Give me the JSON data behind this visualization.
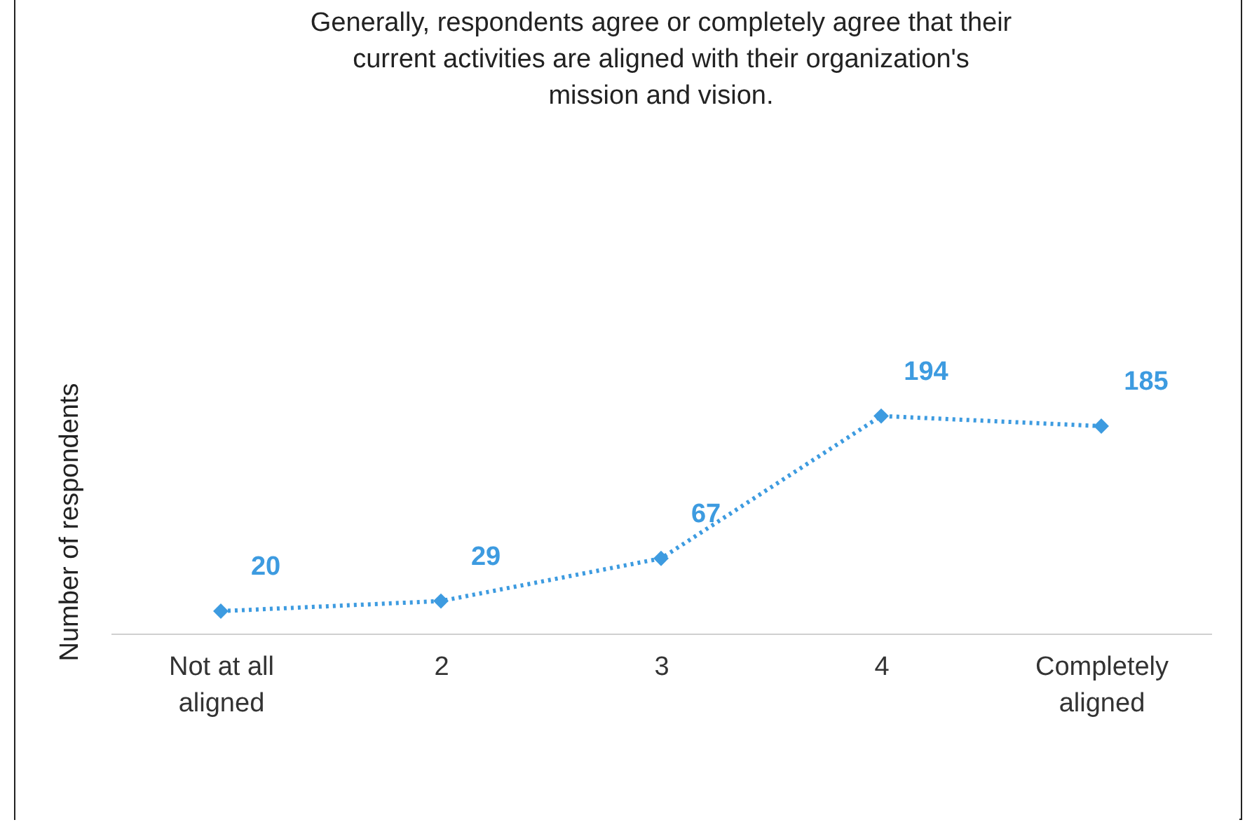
{
  "chart_data": {
    "type": "line",
    "title": "Generally, respondents agree or completely agree that their current activities are aligned with their organization's mission and vision.",
    "ylabel": "Number of respondents",
    "categories": [
      "Not at all aligned",
      "2",
      "3",
      "4",
      "Completely aligned"
    ],
    "series": [
      {
        "color": "#3d9be0",
        "values": [
          20,
          29,
          67,
          194,
          185
        ]
      }
    ],
    "data_labels": true,
    "marker": "diamond",
    "line_style": "dotted",
    "grid": false
  }
}
